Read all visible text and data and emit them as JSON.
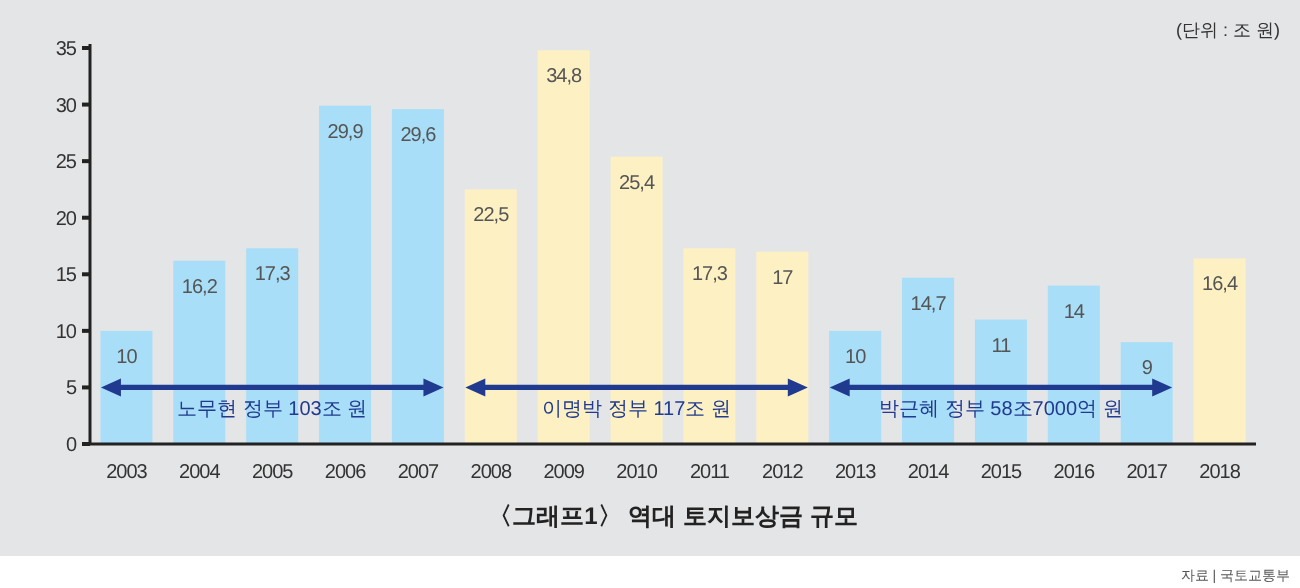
{
  "chart_data": {
    "type": "bar",
    "title": "〈그래프1〉 역대 토지보상금 규모",
    "categories": [
      "2003",
      "2004",
      "2005",
      "2006",
      "2007",
      "2008",
      "2009",
      "2010",
      "2011",
      "2012",
      "2013",
      "2014",
      "2015",
      "2016",
      "2017",
      "2018"
    ],
    "values": [
      10,
      16.2,
      17.3,
      29.9,
      29.6,
      22.5,
      34.8,
      25.4,
      17.3,
      17,
      10,
      14.7,
      11,
      14,
      9,
      16.4
    ],
    "value_labels": [
      "10",
      "16,2",
      "17,3",
      "29,9",
      "29,6",
      "22,5",
      "34,8",
      "25,4",
      "17,3",
      "17",
      "10",
      "14,7",
      "11",
      "14",
      "9",
      "16,4"
    ],
    "colors": [
      "#a9def8",
      "#a9def8",
      "#a9def8",
      "#a9def8",
      "#a9def8",
      "#fdf1c4",
      "#fdf1c4",
      "#fdf1c4",
      "#fdf1c4",
      "#fdf1c4",
      "#a9def8",
      "#a9def8",
      "#a9def8",
      "#a9def8",
      "#a9def8",
      "#fdf1c4"
    ],
    "ylim": [
      0,
      35
    ],
    "yticks": [
      0,
      5,
      10,
      15,
      20,
      25,
      30,
      35
    ],
    "annotations": [
      "(단위 : 조 원)",
      "자료 | 국토교통부",
      "노무현 정부 103조 원",
      "이명박 정부 117조 원",
      "박근혜 정부 58조7000억 원"
    ]
  }
}
